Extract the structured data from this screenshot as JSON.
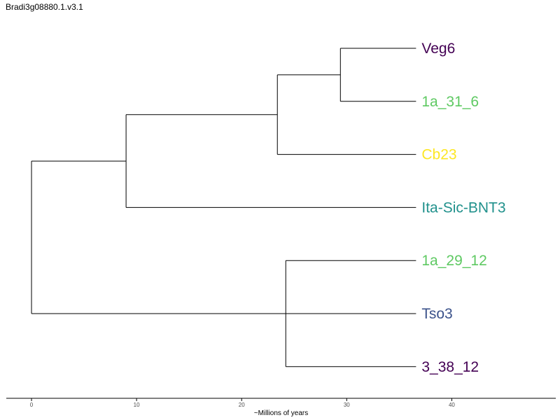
{
  "title": "Bradi3g08880.1.v3.1",
  "chart_data": {
    "type": "dendrogram",
    "title": "Bradi3g08880.1.v3.1",
    "xlabel": "~Millions of years",
    "ylabel": "",
    "xlim": [
      -2.4,
      49.9
    ],
    "xticks": [
      0,
      10,
      20,
      30,
      40
    ],
    "tip_x": 36.6,
    "tips": [
      {
        "label": "Veg6",
        "color": "#440154"
      },
      {
        "label": "1a_31_6",
        "color": "#5ec962"
      },
      {
        "label": "Cb23",
        "color": "#fde725"
      },
      {
        "label": "Ita-Sic-BNT3",
        "color": "#21918c"
      },
      {
        "label": "1a_29_12",
        "color": "#5ec962"
      },
      {
        "label": "Tso3",
        "color": "#3b528b"
      },
      {
        "label": "3_38_12",
        "color": "#440154"
      }
    ],
    "nodes": [
      {
        "id": "n1",
        "x": 29.4,
        "children": [
          "Veg6",
          "1a_31_6"
        ]
      },
      {
        "id": "n2",
        "x": 23.4,
        "children": [
          "n1",
          "Cb23"
        ]
      },
      {
        "id": "n3",
        "x": 9.0,
        "children": [
          "n2",
          "Ita-Sic-BNT3"
        ]
      },
      {
        "id": "n4",
        "x": 24.2,
        "children": [
          "1a_29_12",
          "Tso3",
          "3_38_12"
        ]
      },
      {
        "id": "root",
        "x": 0,
        "children": [
          "n3",
          "n4"
        ]
      }
    ]
  }
}
